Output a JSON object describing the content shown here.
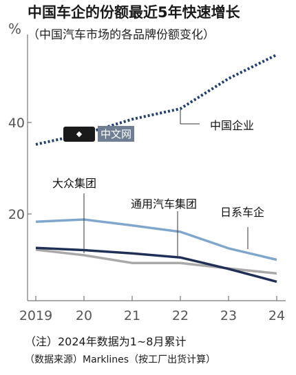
{
  "header": {
    "title": "中国车企的份额最近5年快速增长",
    "subtitle": "（中国汽车市场的各品牌份额变化）",
    "unit": "%"
  },
  "watermark": {
    "text": "中文网"
  },
  "notes": {
    "note1": "（注）2024年数据为1~8月累计",
    "note2": "（数据来源）Marklines（按工厂出货计算）"
  },
  "chart_data": {
    "type": "line",
    "x": [
      2019,
      2020,
      2021,
      2022,
      2023,
      2024
    ],
    "x_tick_labels": [
      "2019",
      "20",
      "21",
      "22",
      "23",
      "24"
    ],
    "ylim": [
      5,
      57
    ],
    "y_ticks": [
      20,
      40
    ],
    "grid": false,
    "series": [
      {
        "name": "中国企业",
        "color": "#1f3f70",
        "style": "dotted",
        "values": [
          35.2,
          37.5,
          40.7,
          43.0,
          49.6,
          54.8
        ]
      },
      {
        "name": "大众集团",
        "color": "#7fa6cc",
        "style": "solid",
        "values": [
          18.3,
          18.8,
          17.5,
          16.1,
          12.5,
          10.0
        ]
      },
      {
        "name": "通用汽车集团",
        "color": "#1f2f55",
        "style": "solid",
        "values": [
          12.6,
          12.1,
          11.4,
          10.5,
          8.0,
          5.2
        ]
      },
      {
        "name": "日系车企",
        "color": "#a9a9a9",
        "style": "solid",
        "values": [
          12.2,
          11.0,
          9.3,
          9.3,
          8.1,
          7.0
        ]
      }
    ]
  }
}
